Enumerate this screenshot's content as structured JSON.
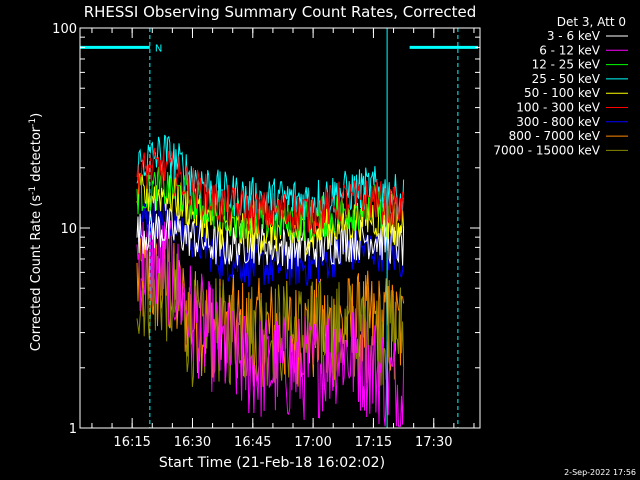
{
  "chart_data": {
    "type": "line",
    "title": "RHESSI Observing Summary Count Rates, Corrected",
    "xlabel": "Start Time (21-Feb-18 16:02:02)",
    "ylabel_main": "Corrected Count Rate (s",
    "ylabel_sup1": "-1",
    "ylabel_mid": " detector",
    "ylabel_sup2": "-1",
    "ylabel_end": ")",
    "yscale": "log",
    "ylim": [
      1,
      100
    ],
    "y_ticks": [
      {
        "value": 1,
        "label": "1"
      },
      {
        "value": 10,
        "label": "10"
      },
      {
        "value": 100,
        "label": "100"
      }
    ],
    "x_ticks": [
      {
        "minutes": 15,
        "label": "16:15"
      },
      {
        "minutes": 30,
        "label": "16:30"
      },
      {
        "minutes": 45,
        "label": "16:45"
      },
      {
        "minutes": 60,
        "label": "17:00"
      },
      {
        "minutes": 75,
        "label": "17:15"
      },
      {
        "minutes": 90,
        "label": "17:30"
      }
    ],
    "xlim_minutes": [
      2.03,
      101.5
    ],
    "data_range_minutes": [
      16.2,
      82.5
    ],
    "night_marker": "N",
    "legend_header": "Det 3, Att 0",
    "series": [
      {
        "name": "3 - 6 keV",
        "color": "#ffffff",
        "values": [
          9.5,
          10.0,
          9.0,
          8.0,
          8.5,
          8.0,
          8.0,
          8.5,
          9.0,
          8.0
        ]
      },
      {
        "name": "6 - 12 keV",
        "color": "#ff00ff",
        "values": [
          7.0,
          6.5,
          3.5,
          2.5,
          2.0,
          2.0,
          2.0,
          2.5,
          2.0,
          1.5
        ]
      },
      {
        "name": "12 - 25 keV",
        "color": "#00ff00",
        "values": [
          15.0,
          16.0,
          14.0,
          12.0,
          11.0,
          11.0,
          11.0,
          12.0,
          13.0,
          12.0
        ]
      },
      {
        "name": "25 - 50 keV",
        "color": "#00ffff",
        "values": [
          21.0,
          24.0,
          18.0,
          15.0,
          14.0,
          14.0,
          14.0,
          15.0,
          16.0,
          14.0
        ]
      },
      {
        "name": "50 - 100 keV",
        "color": "#ffff00",
        "values": [
          14.5,
          15.0,
          12.5,
          10.0,
          9.5,
          9.5,
          9.5,
          10.5,
          11.5,
          10.0
        ]
      },
      {
        "name": "100 - 300 keV",
        "color": "#ff0000",
        "values": [
          19.0,
          20.0,
          16.0,
          13.0,
          12.0,
          12.0,
          12.0,
          13.5,
          14.0,
          12.0
        ]
      },
      {
        "name": "300 - 800 keV",
        "color": "#0000ff",
        "values": [
          11.0,
          11.5,
          9.0,
          7.0,
          6.5,
          6.5,
          6.5,
          7.5,
          8.0,
          7.0
        ]
      },
      {
        "name": "800 - 7000 keV",
        "color": "#ff8800",
        "values": [
          5.5,
          5.2,
          3.5,
          3.2,
          3.0,
          3.0,
          3.0,
          3.2,
          3.3,
          3.0
        ]
      },
      {
        "name": "7000 - 15000 keV",
        "color": "#888800",
        "values": [
          5.0,
          5.0,
          3.0,
          3.0,
          3.0,
          3.0,
          3.0,
          3.0,
          3.0,
          3.0
        ]
      }
    ],
    "series_x_minutes": [
      17,
      23,
      30,
      37,
      45,
      52,
      60,
      67,
      75,
      82
    ],
    "saa_or_flag_segments": [
      {
        "x_start_minutes": 2.03,
        "x_end_minutes": 19.4,
        "value": 80
      },
      {
        "x_start_minutes": 84.0,
        "x_end_minutes": 101.0,
        "value": 80
      }
    ],
    "vertical_markers": [
      {
        "minutes": 2.03,
        "color": "#00ffff",
        "style": "solid"
      },
      {
        "minutes": 19.4,
        "color": "#00ffff",
        "style": "dashed"
      },
      {
        "minutes": 78.4,
        "color": "#00ffff",
        "style": "solid"
      },
      {
        "minutes": 96.0,
        "color": "#00ffff",
        "style": "dashed"
      }
    ]
  },
  "footer": {
    "timestamp": "2-Sep-2022 17:56"
  }
}
